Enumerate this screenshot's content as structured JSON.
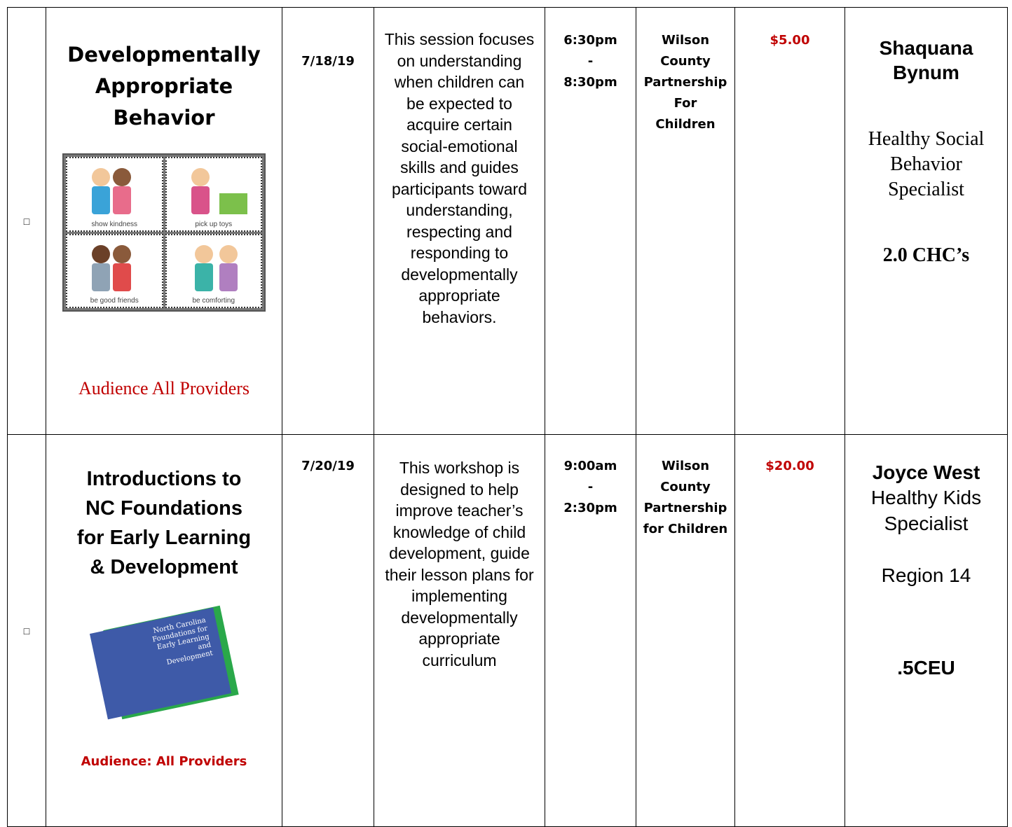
{
  "rows": [
    {
      "checkbox": "□",
      "title": "Developmentally Appropriate Behavior",
      "image_captions": [
        "show kindness",
        "pick up toys",
        "be good friends",
        "be comforting"
      ],
      "audience": "Audience All Providers",
      "date": "7/18/19",
      "description": "This session focuses on understanding when children can be expected to acquire certain social-emotional skills and guides participants toward understanding, respecting and responding to developmentally appropriate behaviors.",
      "time": [
        "6:30pm",
        "-",
        "8:30pm"
      ],
      "location": [
        "Wilson",
        "County",
        "Partnership",
        "For",
        "Children"
      ],
      "fee": "$5.00",
      "presenter": {
        "name": "Shaquana Bynum",
        "role": "Healthy Social Behavior Specialist",
        "credits": "2.0 CHC’s"
      }
    },
    {
      "checkbox": "□",
      "title": "Introductions to NC Foundations for Early Learning & Development",
      "image_text": "North Carolina Foundations for Early Learning and Development",
      "audience": "Audience: All Providers",
      "date": "7/20/19",
      "description": "This workshop is designed to help improve teacher’s knowledge of child development, guide their lesson plans for implementing developmentally appropriate curriculum",
      "time": [
        "9:00am",
        "-",
        "2:30pm"
      ],
      "location": [
        "Wilson",
        "County",
        "Partnership",
        "for Children"
      ],
      "fee": "$20.00",
      "presenter": {
        "name": "Joyce West",
        "role": "Healthy Kids Specialist",
        "region": "Region 14",
        "credits": ".5CEU"
      }
    }
  ]
}
